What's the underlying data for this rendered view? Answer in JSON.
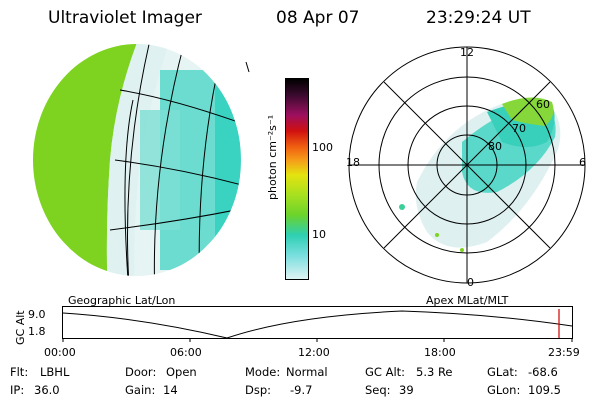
{
  "header": {
    "instrument": "Ultraviolet Imager",
    "date": "08 Apr 07",
    "time": "23:29:24 UT"
  },
  "colorbar": {
    "unit_label": "photon cm⁻²s⁻¹",
    "ticks": [
      "100",
      "10"
    ]
  },
  "polar_plot": {
    "mlt_labels": [
      "12",
      "18",
      "6",
      "0"
    ],
    "mlat_labels": [
      "60",
      "70",
      "80"
    ]
  },
  "panels": {
    "left_caption": "Geographic Lat/Lon",
    "right_caption": "Apex MLat/MLT"
  },
  "orbit": {
    "ylabel": "GC Alt",
    "ymax": "9.0",
    "ymin": "1.8",
    "time_ticks": [
      "00:00",
      "06:00",
      "12:00",
      "18:00",
      "23:59"
    ]
  },
  "status": {
    "filter_label": "Flt:",
    "filter_value": "LBHL",
    "ip_label": "IP:",
    "ip_value": "36.0",
    "door_label": "Door:",
    "door_value": "Open",
    "gain_label": "Gain:",
    "gain_value": "14",
    "mode_label": "Mode:",
    "mode_value": "Normal",
    "dsp_label": "Dsp:",
    "dsp_value": "-9.7",
    "gcalt_label": "GC Alt:",
    "gcalt_value": "5.3 Re",
    "seq_label": "Seq:",
    "seq_value": "39",
    "glat_label": "GLat:",
    "glat_value": "-68.6",
    "glon_label": "GLon:",
    "glon_value": "109.5"
  },
  "colors": {
    "green": "#7ed321",
    "teal": "#33d0c0",
    "light": "#e3f3f3",
    "current_marker": "#d00000"
  }
}
